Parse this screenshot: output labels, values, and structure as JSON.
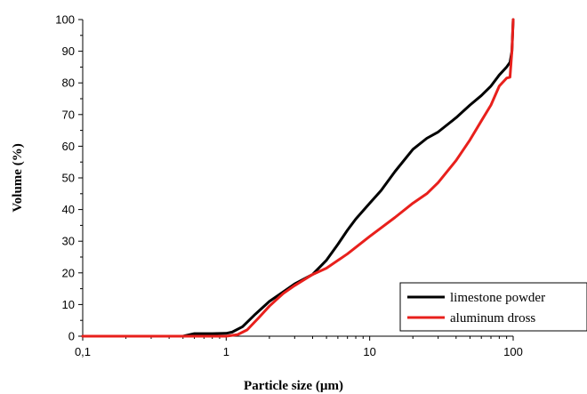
{
  "chart_data": {
    "type": "line",
    "title": "",
    "xlabel": "Particle size (µm)",
    "ylabel": "Volume (%)",
    "x_scale": "log",
    "xlim": [
      0.1,
      100
    ],
    "ylim": [
      0,
      100
    ],
    "x_ticks": [
      {
        "value": 0.1,
        "label": "0,1"
      },
      {
        "value": 1,
        "label": "1"
      },
      {
        "value": 10,
        "label": "10"
      },
      {
        "value": 100,
        "label": "100"
      }
    ],
    "y_ticks": [
      0,
      10,
      20,
      30,
      40,
      50,
      60,
      70,
      80,
      90,
      100
    ],
    "grid": false,
    "legend_position": "bottom-right",
    "series": [
      {
        "name": "limestone powder",
        "color": "#000000",
        "points": [
          [
            0.1,
            0
          ],
          [
            0.5,
            0
          ],
          [
            0.6,
            0.8
          ],
          [
            0.8,
            0.8
          ],
          [
            1.0,
            0.9
          ],
          [
            1.1,
            1.3
          ],
          [
            1.3,
            3
          ],
          [
            1.6,
            7
          ],
          [
            2,
            11
          ],
          [
            2.5,
            14
          ],
          [
            3,
            16.5
          ],
          [
            4,
            19.5
          ],
          [
            5,
            24
          ],
          [
            6,
            29
          ],
          [
            7,
            33.5
          ],
          [
            8,
            37
          ],
          [
            10,
            42
          ],
          [
            12,
            46
          ],
          [
            15,
            52
          ],
          [
            20,
            59
          ],
          [
            25,
            62.5
          ],
          [
            30,
            64.5
          ],
          [
            40,
            69
          ],
          [
            50,
            73
          ],
          [
            60,
            76
          ],
          [
            70,
            79
          ],
          [
            80,
            82.5
          ],
          [
            90,
            85
          ],
          [
            95,
            86.5
          ],
          [
            98,
            90
          ],
          [
            100,
            100
          ]
        ]
      },
      {
        "name": "aluminum dross",
        "color": "#e8201c",
        "points": [
          [
            0.1,
            0
          ],
          [
            1.0,
            0
          ],
          [
            1.2,
            0.5
          ],
          [
            1.4,
            2
          ],
          [
            1.7,
            6
          ],
          [
            2,
            9.5
          ],
          [
            2.5,
            13.5
          ],
          [
            3,
            16
          ],
          [
            4,
            19.5
          ],
          [
            5,
            21.5
          ],
          [
            7,
            26
          ],
          [
            10,
            31.5
          ],
          [
            15,
            37.5
          ],
          [
            20,
            42
          ],
          [
            25,
            45
          ],
          [
            30,
            48.5
          ],
          [
            40,
            55.5
          ],
          [
            50,
            62
          ],
          [
            60,
            68
          ],
          [
            70,
            73
          ],
          [
            80,
            79
          ],
          [
            90,
            81.5
          ],
          [
            95,
            81.8
          ],
          [
            98,
            90
          ],
          [
            100,
            100
          ]
        ]
      }
    ]
  }
}
